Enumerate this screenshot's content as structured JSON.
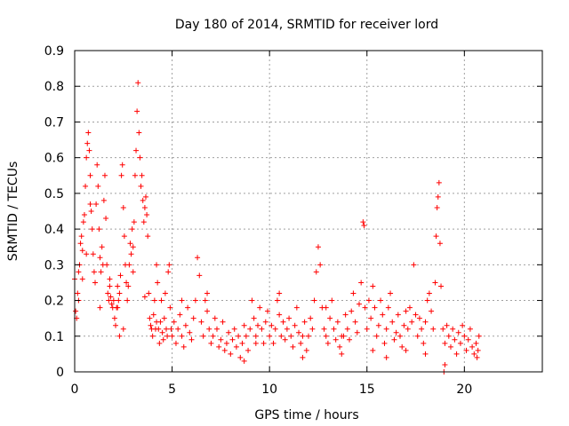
{
  "chart_data": {
    "type": "scatter",
    "title": "Day 180 of 2014, SRMTID for receiver lord",
    "xlabel": "GPS time / hours",
    "ylabel": "SRMTID / TECUs",
    "xlim": [
      0,
      24
    ],
    "ylim": [
      0,
      0.9
    ],
    "xticks": [
      0,
      5,
      10,
      15,
      20
    ],
    "xtick_labels": [
      "0",
      "5",
      "10",
      "15",
      "20"
    ],
    "yticks": [
      0,
      0.1,
      0.2,
      0.3,
      0.4,
      0.5,
      0.6,
      0.7,
      0.8,
      0.9
    ],
    "ytick_labels": [
      "0",
      "0.1",
      "0.2",
      "0.3",
      "0.4",
      "0.5",
      "0.6",
      "0.7",
      "0.8",
      "0.9"
    ],
    "grid": true,
    "marker": "+",
    "series_color": "#ff0000",
    "series": [
      {
        "name": "SRMTID",
        "points": [
          [
            0.0,
            0.26
          ],
          [
            0.05,
            0.17
          ],
          [
            0.1,
            0.15
          ],
          [
            0.15,
            0.22
          ],
          [
            0.2,
            0.28
          ],
          [
            0.25,
            0.3
          ],
          [
            0.3,
            0.36
          ],
          [
            0.35,
            0.38
          ],
          [
            0.4,
            0.34
          ],
          [
            0.45,
            0.42
          ],
          [
            0.5,
            0.44
          ],
          [
            0.55,
            0.52
          ],
          [
            0.6,
            0.6
          ],
          [
            0.65,
            0.64
          ],
          [
            0.7,
            0.67
          ],
          [
            0.75,
            0.62
          ],
          [
            0.8,
            0.55
          ],
          [
            0.85,
            0.45
          ],
          [
            0.9,
            0.4
          ],
          [
            0.95,
            0.33
          ],
          [
            1.0,
            0.28
          ],
          [
            1.05,
            0.25
          ],
          [
            1.1,
            0.47
          ],
          [
            1.15,
            0.58
          ],
          [
            1.2,
            0.52
          ],
          [
            1.25,
            0.4
          ],
          [
            1.3,
            0.32
          ],
          [
            1.35,
            0.28
          ],
          [
            1.4,
            0.35
          ],
          [
            1.45,
            0.3
          ],
          [
            1.5,
            0.48
          ],
          [
            1.55,
            0.55
          ],
          [
            1.6,
            0.43
          ],
          [
            1.65,
            0.3
          ],
          [
            1.7,
            0.22
          ],
          [
            1.75,
            0.2
          ],
          [
            1.8,
            0.24
          ],
          [
            1.85,
            0.21
          ],
          [
            1.9,
            0.19
          ],
          [
            1.95,
            0.18
          ],
          [
            2.0,
            0.2
          ],
          [
            2.05,
            0.15
          ],
          [
            2.1,
            0.13
          ],
          [
            2.15,
            0.18
          ],
          [
            2.2,
            0.24
          ],
          [
            2.25,
            0.2
          ],
          [
            2.3,
            0.22
          ],
          [
            2.35,
            0.27
          ],
          [
            2.4,
            0.55
          ],
          [
            2.45,
            0.58
          ],
          [
            2.5,
            0.46
          ],
          [
            2.55,
            0.38
          ],
          [
            2.6,
            0.3
          ],
          [
            2.65,
            0.25
          ],
          [
            2.7,
            0.2
          ],
          [
            2.75,
            0.24
          ],
          [
            2.8,
            0.3
          ],
          [
            2.85,
            0.36
          ],
          [
            2.9,
            0.33
          ],
          [
            2.95,
            0.4
          ],
          [
            3.0,
            0.35
          ],
          [
            3.05,
            0.42
          ],
          [
            3.1,
            0.55
          ],
          [
            3.15,
            0.62
          ],
          [
            3.2,
            0.73
          ],
          [
            3.25,
            0.81
          ],
          [
            3.3,
            0.67
          ],
          [
            3.35,
            0.6
          ],
          [
            3.4,
            0.52
          ],
          [
            3.45,
            0.55
          ],
          [
            3.5,
            0.48
          ],
          [
            3.55,
            0.42
          ],
          [
            3.6,
            0.46
          ],
          [
            3.65,
            0.49
          ],
          [
            3.7,
            0.44
          ],
          [
            3.75,
            0.38
          ],
          [
            3.8,
            0.22
          ],
          [
            3.85,
            0.15
          ],
          [
            3.9,
            0.13
          ],
          [
            3.95,
            0.12
          ],
          [
            4.0,
            0.1
          ],
          [
            4.05,
            0.16
          ],
          [
            4.1,
            0.2
          ],
          [
            4.15,
            0.12
          ],
          [
            4.2,
            0.3
          ],
          [
            4.25,
            0.25
          ],
          [
            4.3,
            0.12
          ],
          [
            4.35,
            0.08
          ],
          [
            4.4,
            0.14
          ],
          [
            4.45,
            0.2
          ],
          [
            4.5,
            0.11
          ],
          [
            4.55,
            0.09
          ],
          [
            4.6,
            0.15
          ],
          [
            4.65,
            0.22
          ],
          [
            4.7,
            0.12
          ],
          [
            4.75,
            0.1
          ],
          [
            4.8,
            0.28
          ],
          [
            4.85,
            0.3
          ],
          [
            4.9,
            0.18
          ],
          [
            4.95,
            0.12
          ],
          [
            5.0,
            0.1
          ],
          [
            5.1,
            0.14
          ],
          [
            5.2,
            0.08
          ],
          [
            5.3,
            0.12
          ],
          [
            5.4,
            0.16
          ],
          [
            5.5,
            0.1
          ],
          [
            5.6,
            0.07
          ],
          [
            5.7,
            0.13
          ],
          [
            5.8,
            0.18
          ],
          [
            5.9,
            0.11
          ],
          [
            6.0,
            0.09
          ],
          [
            6.1,
            0.15
          ],
          [
            6.2,
            0.2
          ],
          [
            6.3,
            0.32
          ],
          [
            6.4,
            0.27
          ],
          [
            6.5,
            0.14
          ],
          [
            6.6,
            0.1
          ],
          [
            6.7,
            0.2
          ],
          [
            6.8,
            0.22
          ],
          [
            6.9,
            0.12
          ],
          [
            7.0,
            0.08
          ],
          [
            7.1,
            0.1
          ],
          [
            7.2,
            0.15
          ],
          [
            7.3,
            0.12
          ],
          [
            7.4,
            0.07
          ],
          [
            7.5,
            0.09
          ],
          [
            7.6,
            0.14
          ],
          [
            7.7,
            0.06
          ],
          [
            7.8,
            0.08
          ],
          [
            7.9,
            0.11
          ],
          [
            8.0,
            0.05
          ],
          [
            8.1,
            0.09
          ],
          [
            8.2,
            0.12
          ],
          [
            8.3,
            0.07
          ],
          [
            8.4,
            0.1
          ],
          [
            8.5,
            0.04
          ],
          [
            8.6,
            0.08
          ],
          [
            8.7,
            0.13
          ],
          [
            8.8,
            0.1
          ],
          [
            8.9,
            0.06
          ],
          [
            9.0,
            0.12
          ],
          [
            9.1,
            0.2
          ],
          [
            9.2,
            0.15
          ],
          [
            9.3,
            0.1
          ],
          [
            9.4,
            0.13
          ],
          [
            9.5,
            0.18
          ],
          [
            9.6,
            0.12
          ],
          [
            9.7,
            0.08
          ],
          [
            9.8,
            0.14
          ],
          [
            9.9,
            0.17
          ],
          [
            10.0,
            0.1
          ],
          [
            10.1,
            0.13
          ],
          [
            10.2,
            0.08
          ],
          [
            10.3,
            0.12
          ],
          [
            10.4,
            0.2
          ],
          [
            10.5,
            0.16
          ],
          [
            10.6,
            0.1
          ],
          [
            10.7,
            0.14
          ],
          [
            10.8,
            0.09
          ],
          [
            10.9,
            0.12
          ],
          [
            11.0,
            0.15
          ],
          [
            11.1,
            0.1
          ],
          [
            11.2,
            0.07
          ],
          [
            11.3,
            0.13
          ],
          [
            11.4,
            0.18
          ],
          [
            11.5,
            0.11
          ],
          [
            11.6,
            0.08
          ],
          [
            11.7,
            0.1
          ],
          [
            11.8,
            0.14
          ],
          [
            11.9,
            0.06
          ],
          [
            12.0,
            0.1
          ],
          [
            12.1,
            0.15
          ],
          [
            12.2,
            0.12
          ],
          [
            12.3,
            0.2
          ],
          [
            12.4,
            0.28
          ],
          [
            12.5,
            0.35
          ],
          [
            12.6,
            0.3
          ],
          [
            12.7,
            0.18
          ],
          [
            12.8,
            0.12
          ],
          [
            12.9,
            0.1
          ],
          [
            13.0,
            0.08
          ],
          [
            13.1,
            0.15
          ],
          [
            13.2,
            0.2
          ],
          [
            13.3,
            0.12
          ],
          [
            13.4,
            0.09
          ],
          [
            13.5,
            0.14
          ],
          [
            13.6,
            0.07
          ],
          [
            13.7,
            0.05
          ],
          [
            13.8,
            0.1
          ],
          [
            13.9,
            0.16
          ],
          [
            14.0,
            0.12
          ],
          [
            14.1,
            0.09
          ],
          [
            14.2,
            0.17
          ],
          [
            14.3,
            0.22
          ],
          [
            14.4,
            0.14
          ],
          [
            14.5,
            0.11
          ],
          [
            14.6,
            0.19
          ],
          [
            14.7,
            0.25
          ],
          [
            14.8,
            0.42
          ],
          [
            14.85,
            0.41
          ],
          [
            14.9,
            0.18
          ],
          [
            15.0,
            0.12
          ],
          [
            15.1,
            0.2
          ],
          [
            15.2,
            0.15
          ],
          [
            15.3,
            0.24
          ],
          [
            15.4,
            0.18
          ],
          [
            15.5,
            0.1
          ],
          [
            15.6,
            0.13
          ],
          [
            15.7,
            0.2
          ],
          [
            15.8,
            0.16
          ],
          [
            15.9,
            0.08
          ],
          [
            16.0,
            0.12
          ],
          [
            16.1,
            0.18
          ],
          [
            16.2,
            0.22
          ],
          [
            16.3,
            0.14
          ],
          [
            16.4,
            0.09
          ],
          [
            16.5,
            0.11
          ],
          [
            16.6,
            0.16
          ],
          [
            16.7,
            0.1
          ],
          [
            16.8,
            0.07
          ],
          [
            16.9,
            0.13
          ],
          [
            17.0,
            0.17
          ],
          [
            17.1,
            0.12
          ],
          [
            17.2,
            0.18
          ],
          [
            17.3,
            0.14
          ],
          [
            17.4,
            0.3
          ],
          [
            17.5,
            0.16
          ],
          [
            17.6,
            0.1
          ],
          [
            17.7,
            0.15
          ],
          [
            17.8,
            0.12
          ],
          [
            17.9,
            0.08
          ],
          [
            18.0,
            0.14
          ],
          [
            18.1,
            0.2
          ],
          [
            18.2,
            0.22
          ],
          [
            18.3,
            0.17
          ],
          [
            18.4,
            0.12
          ],
          [
            18.5,
            0.25
          ],
          [
            18.55,
            0.38
          ],
          [
            18.6,
            0.46
          ],
          [
            18.65,
            0.49
          ],
          [
            18.7,
            0.53
          ],
          [
            18.75,
            0.36
          ],
          [
            18.8,
            0.24
          ],
          [
            18.9,
            0.12
          ],
          [
            19.0,
            0.08
          ],
          [
            19.1,
            0.13
          ],
          [
            19.2,
            0.1
          ],
          [
            19.3,
            0.07
          ],
          [
            19.4,
            0.12
          ],
          [
            19.5,
            0.09
          ],
          [
            19.6,
            0.05
          ],
          [
            19.7,
            0.11
          ],
          [
            19.8,
            0.08
          ],
          [
            19.9,
            0.13
          ],
          [
            20.0,
            0.1
          ],
          [
            20.1,
            0.06
          ],
          [
            20.2,
            0.09
          ],
          [
            20.3,
            0.12
          ],
          [
            20.4,
            0.07
          ],
          [
            20.5,
            0.05
          ],
          [
            20.6,
            0.08
          ],
          [
            20.65,
            0.04
          ],
          [
            20.7,
            0.06
          ],
          [
            20.75,
            0.1
          ],
          [
            0.2,
            0.2
          ],
          [
            0.6,
            0.33
          ],
          [
            1.3,
            0.18
          ],
          [
            2.5,
            0.12
          ],
          [
            3.0,
            0.28
          ],
          [
            3.6,
            0.21
          ],
          [
            4.2,
            0.14
          ],
          [
            5.5,
            0.2
          ],
          [
            6.8,
            0.17
          ],
          [
            8.7,
            0.03
          ],
          [
            9.3,
            0.08
          ],
          [
            10.5,
            0.22
          ],
          [
            11.7,
            0.04
          ],
          [
            12.9,
            0.18
          ],
          [
            13.7,
            0.1
          ],
          [
            15.3,
            0.06
          ],
          [
            16.0,
            0.04
          ],
          [
            17.0,
            0.06
          ],
          [
            18.0,
            0.05
          ],
          [
            19.0,
            0.02
          ],
          [
            18.95,
            0.0
          ],
          [
            2.2,
            0.18
          ],
          [
            2.3,
            0.1
          ],
          [
            1.8,
            0.26
          ],
          [
            0.4,
            0.26
          ],
          [
            0.8,
            0.47
          ]
        ]
      }
    ]
  }
}
